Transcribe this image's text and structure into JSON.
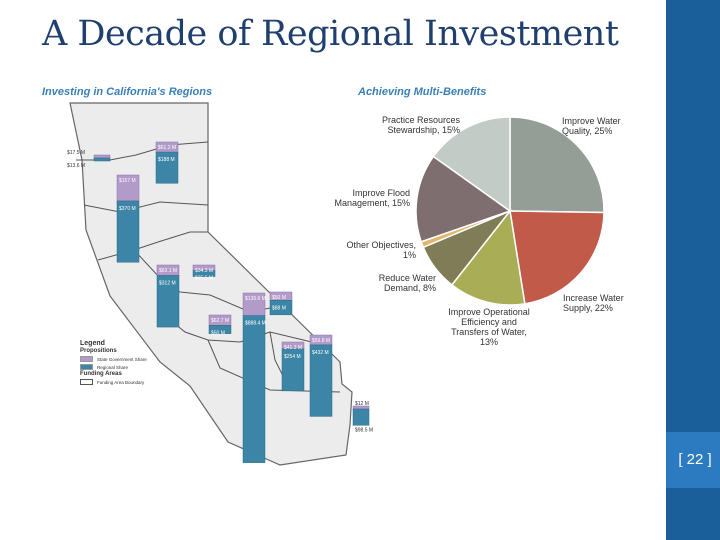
{
  "slide": {
    "title": "A Decade of Regional Investment",
    "page_number": "[ 22 ]"
  },
  "colors": {
    "title": "#1f3f6e",
    "sidebar": "#1a5f99",
    "state_share": "#b29ac9",
    "regional_share": "#3d85a6",
    "heading": "#3a7fb7"
  },
  "map_panel": {
    "heading": "Investing in California's Regions",
    "legend": {
      "title": "Legend",
      "section1": "Propositions",
      "state_share": "State Government Share",
      "regional_share": "Regional Share",
      "section2": "Funding Areas",
      "boundary": "Funding Area Boundary"
    }
  },
  "pie_panel": {
    "heading": "Achieving Multi-Benefits"
  },
  "chart_data": [
    {
      "type": "bar",
      "title": "Investing in California's Regions",
      "legend": [
        "State Government Share",
        "Regional Share"
      ],
      "bars": [
        {
          "state_label": "$17.5 M",
          "regional_label": "$13.6 M",
          "state": 17.5,
          "regional": 13.6
        },
        {
          "state_label": "$61.2 M",
          "regional_label": "$188 M",
          "state": 61.2,
          "regional": 188
        },
        {
          "state_label": "$157 M",
          "regional_label": "$370 M",
          "state": 157,
          "regional": 370
        },
        {
          "state_label": "$63.1 M",
          "regional_label": "$312 M",
          "state": 63.1,
          "regional": 312
        },
        {
          "state_label": "$34.3 M",
          "regional_label": "$35.5 M",
          "state": 34.3,
          "regional": 35.5
        },
        {
          "state_label": "$136.6 M",
          "regional_label": "$888.4 M",
          "state": 136.6,
          "regional": 888.4
        },
        {
          "state_label": "$50 M",
          "regional_label": "$88 M",
          "state": 50,
          "regional": 88
        },
        {
          "state_label": "$62.7 M",
          "regional_label": "$50 M",
          "state": 62.7,
          "regional": 50
        },
        {
          "state_label": "$41.3 M",
          "regional_label": "$254 M",
          "state": 41.3,
          "regional": 254
        },
        {
          "state_label": "$59.8 M",
          "regional_label": "$432 M",
          "state": 59.8,
          "regional": 432
        },
        {
          "state_label": "$12 M",
          "regional_label": "$98.5 M",
          "state": 12,
          "regional": 98.5
        }
      ]
    },
    {
      "type": "pie",
      "title": "Achieving Multi-Benefits",
      "slices": [
        {
          "label": "Improve Water Quality",
          "value": 25,
          "color": "#949e97",
          "display": "Improve Water\nQuality, 25%"
        },
        {
          "label": "Increase Water Supply",
          "value": 22,
          "color": "#c25a4a",
          "display": "Increase Water\nSupply, 22%"
        },
        {
          "label": "Improve Operational Efficiency and Transfers of Water",
          "value": 13,
          "color": "#a9ad55",
          "display": "Improve Operational\nEfficiency and\nTransfers of Water,\n13%"
        },
        {
          "label": "Reduce Water Demand",
          "value": 8,
          "color": "#7f7c57",
          "display": "Reduce Water\nDemand, 8%"
        },
        {
          "label": "Other Objectives",
          "value": 1,
          "color": "#e2b66b",
          "display": "Other Objectives,\n1%"
        },
        {
          "label": "Improve Flood Management",
          "value": 15,
          "color": "#7e6e6f",
          "display": "Improve Flood\nManagement, 15%"
        },
        {
          "label": "Practice Resources Stewardship",
          "value": 15,
          "color": "#c2cbc6",
          "display": "Practice Resources\nStewardship, 15%"
        }
      ]
    }
  ]
}
